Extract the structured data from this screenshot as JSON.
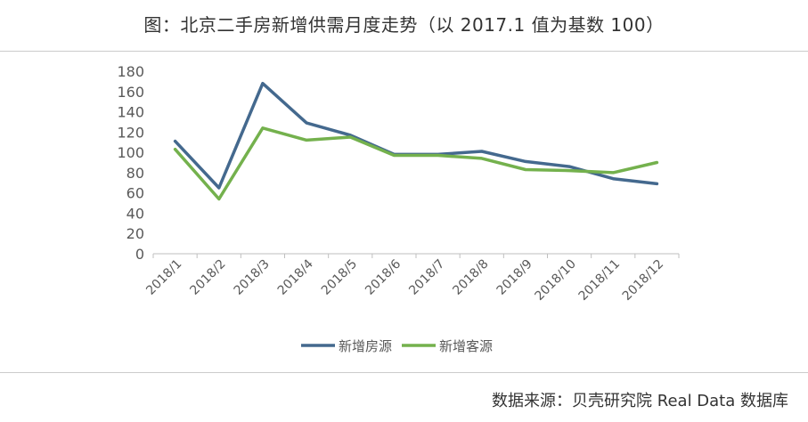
{
  "title": "图：北京二手房新增供需月度走势（以 2017.1 值为基数 100）",
  "source": "数据来源：贝壳研究院 Real Data 数据库",
  "chart_data": {
    "type": "line",
    "categories": [
      "2018/1",
      "2018/2",
      "2018/3",
      "2018/4",
      "2018/5",
      "2018/6",
      "2018/7",
      "2018/8",
      "2018/9",
      "2018/10",
      "2018/11",
      "2018/12"
    ],
    "series": [
      {
        "name": "新增房源",
        "color": "#44698e",
        "values": [
          111,
          65,
          168,
          129,
          117,
          98,
          98,
          101,
          91,
          86,
          74,
          69
        ]
      },
      {
        "name": "新增客源",
        "color": "#74b14d",
        "values": [
          103,
          54,
          124,
          112,
          115,
          97,
          97,
          94,
          83,
          82,
          80,
          90
        ]
      }
    ],
    "yticks": [
      0,
      20,
      40,
      60,
      80,
      100,
      120,
      140,
      160,
      180
    ],
    "ylim": [
      0,
      180
    ],
    "legend_position": "bottom",
    "grid": false
  }
}
